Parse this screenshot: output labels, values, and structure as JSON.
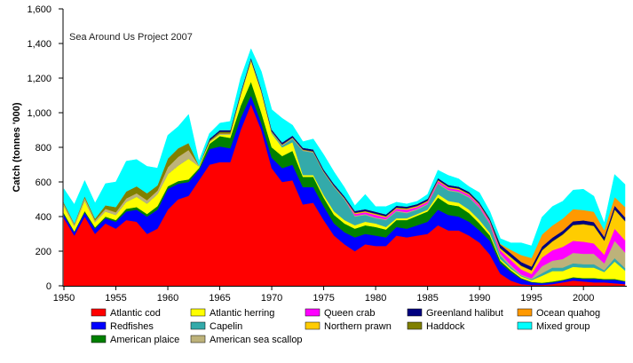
{
  "chart_data": {
    "type": "area",
    "stacked": true,
    "annotation": "Sea Around Us Project 2007",
    "ylabel": "Catch (tonnes '000)",
    "xlabel": "",
    "ylim": [
      0,
      1600
    ],
    "xlim": [
      1950,
      2004
    ],
    "yticks": [
      "0",
      "200",
      "400",
      "600",
      "800",
      "1,000",
      "1,200",
      "1,400",
      "1,600"
    ],
    "ytick_values": [
      0,
      200,
      400,
      600,
      800,
      1000,
      1200,
      1400,
      1600
    ],
    "xticks": [
      "1950",
      "1955",
      "1960",
      "1965",
      "1970",
      "1975",
      "1980",
      "1985",
      "1990",
      "1995",
      "2000"
    ],
    "xtick_values": [
      1950,
      1955,
      1960,
      1965,
      1970,
      1975,
      1980,
      1985,
      1990,
      1995,
      2000
    ],
    "grid": false,
    "legend_placement": "bottom",
    "x": [
      1950,
      1951,
      1952,
      1953,
      1954,
      1955,
      1956,
      1957,
      1958,
      1959,
      1960,
      1961,
      1962,
      1963,
      1964,
      1965,
      1966,
      1967,
      1968,
      1969,
      1970,
      1971,
      1972,
      1973,
      1974,
      1975,
      1976,
      1977,
      1978,
      1979,
      1980,
      1981,
      1982,
      1983,
      1984,
      1985,
      1986,
      1987,
      1988,
      1989,
      1990,
      1991,
      1992,
      1993,
      1994,
      1995,
      1996,
      1997,
      1998,
      1999,
      2000,
      2001,
      2002,
      2003,
      2004
    ],
    "series": [
      {
        "name": "Atlantic cod",
        "color": "#FF0000",
        "values": [
          390,
          290,
          400,
          300,
          360,
          330,
          380,
          370,
          300,
          330,
          440,
          500,
          520,
          610,
          700,
          715,
          715,
          900,
          1050,
          900,
          680,
          600,
          610,
          470,
          480,
          380,
          290,
          240,
          200,
          240,
          230,
          230,
          290,
          280,
          290,
          300,
          350,
          320,
          320,
          290,
          250,
          180,
          70,
          30,
          10,
          5,
          5,
          10,
          20,
          30,
          25,
          20,
          20,
          15,
          10
        ]
      },
      {
        "name": "Redfishes",
        "color": "#0000FF",
        "values": [
          20,
          20,
          25,
          30,
          30,
          40,
          50,
          70,
          100,
          110,
          120,
          90,
          80,
          60,
          90,
          90,
          80,
          70,
          50,
          40,
          60,
          80,
          90,
          100,
          90,
          80,
          70,
          70,
          80,
          60,
          60,
          50,
          50,
          50,
          60,
          70,
          90,
          90,
          80,
          80,
          70,
          80,
          60,
          50,
          30,
          15,
          10,
          10,
          10,
          15,
          15,
          20,
          15,
          20,
          15
        ]
      },
      {
        "name": "American plaice",
        "color": "#008000",
        "values": [
          10,
          5,
          8,
          8,
          10,
          10,
          15,
          15,
          15,
          20,
          15,
          15,
          15,
          10,
          30,
          60,
          60,
          70,
          80,
          60,
          60,
          70,
          80,
          60,
          60,
          50,
          50,
          50,
          50,
          50,
          50,
          45,
          40,
          50,
          55,
          60,
          70,
          60,
          60,
          50,
          40,
          30,
          15,
          10,
          5,
          3,
          3,
          5,
          5,
          5,
          5,
          5,
          5,
          5,
          3
        ]
      },
      {
        "name": "Atlantic herring",
        "color": "#FFFF00",
        "values": [
          40,
          30,
          60,
          30,
          30,
          30,
          40,
          60,
          60,
          70,
          70,
          90,
          120,
          10,
          10,
          10,
          20,
          60,
          120,
          120,
          80,
          50,
          50,
          10,
          10,
          15,
          20,
          20,
          20,
          20,
          20,
          15,
          10,
          10,
          10,
          10,
          20,
          20,
          20,
          20,
          20,
          15,
          10,
          10,
          10,
          10,
          40,
          60,
          50,
          60,
          60,
          60,
          40,
          100,
          60
        ]
      },
      {
        "name": "Capelin",
        "color": "#33AAAA",
        "values": [
          0,
          0,
          0,
          0,
          0,
          0,
          0,
          0,
          0,
          0,
          0,
          0,
          0,
          0,
          0,
          0,
          0,
          0,
          0,
          0,
          5,
          10,
          20,
          140,
          130,
          130,
          140,
          120,
          50,
          40,
          30,
          40,
          40,
          30,
          25,
          30,
          60,
          60,
          60,
          70,
          70,
          50,
          20,
          10,
          5,
          5,
          15,
          20,
          20,
          20,
          20,
          20,
          10,
          20,
          15
        ]
      },
      {
        "name": "American sea scallop",
        "color": "#BDB27A",
        "values": [
          10,
          10,
          15,
          10,
          15,
          15,
          20,
          20,
          20,
          20,
          40,
          50,
          50,
          5,
          5,
          5,
          5,
          5,
          5,
          5,
          5,
          5,
          5,
          5,
          5,
          5,
          5,
          5,
          5,
          5,
          5,
          5,
          5,
          5,
          5,
          5,
          5,
          5,
          5,
          5,
          5,
          5,
          10,
          10,
          5,
          5,
          40,
          40,
          50,
          60,
          60,
          60,
          40,
          100,
          90
        ]
      },
      {
        "name": "Queen crab",
        "color": "#FF00FF",
        "values": [
          0,
          0,
          0,
          0,
          0,
          0,
          0,
          0,
          0,
          0,
          0,
          0,
          0,
          0,
          0,
          0,
          0,
          0,
          0,
          0,
          0,
          0,
          0,
          0,
          0,
          0,
          0,
          0,
          10,
          10,
          15,
          10,
          10,
          15,
          10,
          10,
          10,
          10,
          10,
          10,
          10,
          10,
          20,
          30,
          30,
          25,
          50,
          60,
          70,
          70,
          70,
          60,
          50,
          70,
          70
        ]
      },
      {
        "name": "Northern prawn",
        "color": "#FFCC00",
        "values": [
          0,
          0,
          0,
          0,
          0,
          0,
          0,
          0,
          0,
          0,
          0,
          0,
          0,
          0,
          0,
          0,
          0,
          0,
          0,
          0,
          0,
          0,
          0,
          0,
          0,
          0,
          0,
          0,
          5,
          5,
          5,
          5,
          5,
          5,
          5,
          5,
          5,
          5,
          5,
          5,
          5,
          5,
          10,
          15,
          20,
          20,
          40,
          50,
          70,
          90,
          100,
          100,
          80,
          110,
          110
        ]
      },
      {
        "name": "Haddock",
        "color": "#808000",
        "values": [
          10,
          5,
          10,
          10,
          20,
          30,
          40,
          40,
          40,
          30,
          50,
          50,
          40,
          0,
          5,
          10,
          10,
          5,
          5,
          3,
          3,
          3,
          3,
          3,
          3,
          3,
          3,
          3,
          3,
          3,
          3,
          3,
          3,
          3,
          3,
          3,
          3,
          3,
          3,
          3,
          3,
          3,
          3,
          3,
          3,
          3,
          3,
          3,
          3,
          3,
          3,
          3,
          3,
          3,
          3
        ]
      },
      {
        "name": "Greenland halibut",
        "color": "#000080",
        "values": [
          0,
          0,
          0,
          0,
          0,
          0,
          0,
          0,
          0,
          0,
          0,
          0,
          0,
          0,
          10,
          10,
          10,
          10,
          10,
          10,
          10,
          10,
          10,
          10,
          10,
          10,
          10,
          10,
          10,
          10,
          10,
          10,
          10,
          10,
          10,
          10,
          10,
          10,
          10,
          10,
          10,
          10,
          20,
          20,
          20,
          20,
          20,
          20,
          20,
          20,
          20,
          20,
          20,
          20,
          20
        ]
      },
      {
        "name": "Ocean quahog",
        "color": "#FF9900",
        "values": [
          0,
          0,
          0,
          0,
          0,
          0,
          0,
          0,
          0,
          0,
          0,
          0,
          0,
          0,
          0,
          0,
          0,
          0,
          0,
          0,
          0,
          0,
          0,
          0,
          0,
          0,
          0,
          0,
          0,
          0,
          0,
          0,
          0,
          0,
          0,
          0,
          0,
          0,
          0,
          0,
          0,
          0,
          5,
          20,
          40,
          50,
          70,
          70,
          70,
          70,
          60,
          60,
          40,
          50,
          60
        ]
      },
      {
        "name": "Mixed group",
        "color": "#00FFFF",
        "values": [
          80,
          110,
          90,
          90,
          125,
          145,
          175,
          155,
          155,
          100,
          135,
          125,
          165,
          25,
          30,
          40,
          50,
          80,
          50,
          100,
          115,
          140,
          60,
          35,
          60,
          85,
          70,
          50,
          30,
          85,
          30,
          45,
          20,
          15,
          15,
          25,
          45,
          55,
          45,
          30,
          55,
          40,
          30,
          40,
          70,
          70,
          100,
          110,
          100,
          110,
          120,
          90,
          40,
          130,
          130
        ]
      }
    ],
    "legend_order": [
      "Atlantic cod",
      "Atlantic herring",
      "Queen crab",
      "Greenland halibut",
      "Ocean quahog",
      "Redfishes",
      "Capelin",
      "Northern prawn",
      "Haddock",
      "Mixed group",
      "American plaice",
      "American sea scallop"
    ]
  }
}
